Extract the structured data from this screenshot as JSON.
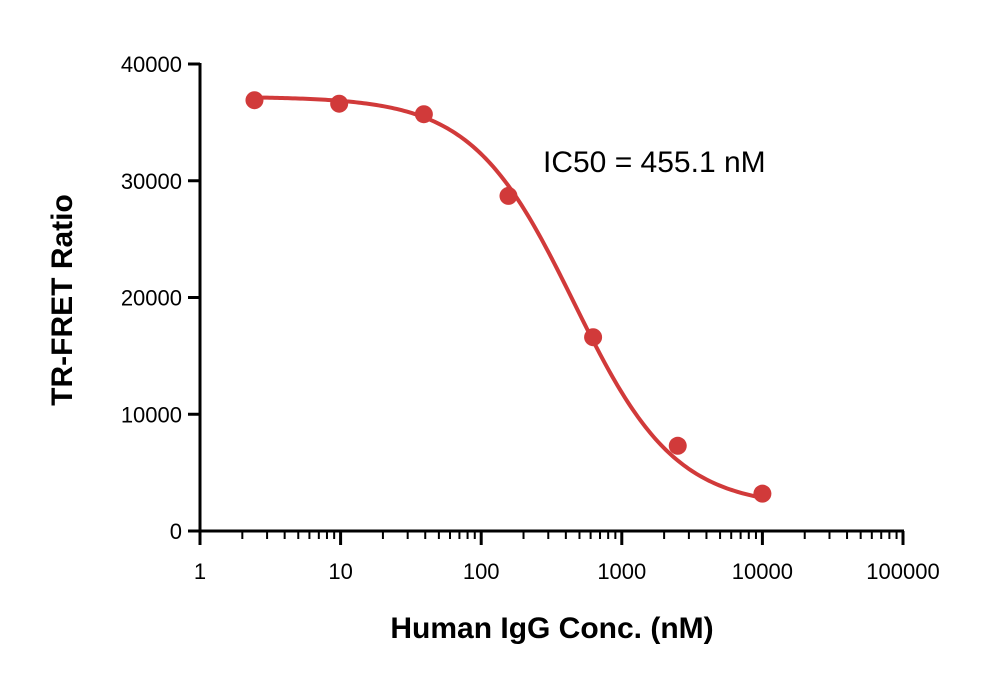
{
  "chart_data": {
    "type": "scatter",
    "xscale": "log",
    "xlabel": "Human IgG Conc. (nM)",
    "ylabel": "TR-FRET Ratio",
    "xlim": [
      1,
      100000
    ],
    "ylim": [
      0,
      40000
    ],
    "x_ticks": [
      "1",
      "10",
      "100",
      "1000",
      "10000",
      "100000"
    ],
    "y_ticks": [
      "0",
      "10000",
      "20000",
      "30000",
      "40000"
    ],
    "grid": false,
    "series": [
      {
        "color": "#d13a3a",
        "x": [
          2.44,
          9.77,
          39.1,
          156.3,
          625,
          2500,
          10000
        ],
        "y": [
          36900,
          36600,
          35700,
          28700,
          16600,
          7300,
          3200
        ]
      }
    ],
    "fit": {
      "model": "4PL",
      "top": 37200,
      "bottom": 2000,
      "ic50": 455.1,
      "hill": 1.2
    },
    "annotations": [
      {
        "text": "IC50 = 455.1 nM"
      }
    ]
  }
}
